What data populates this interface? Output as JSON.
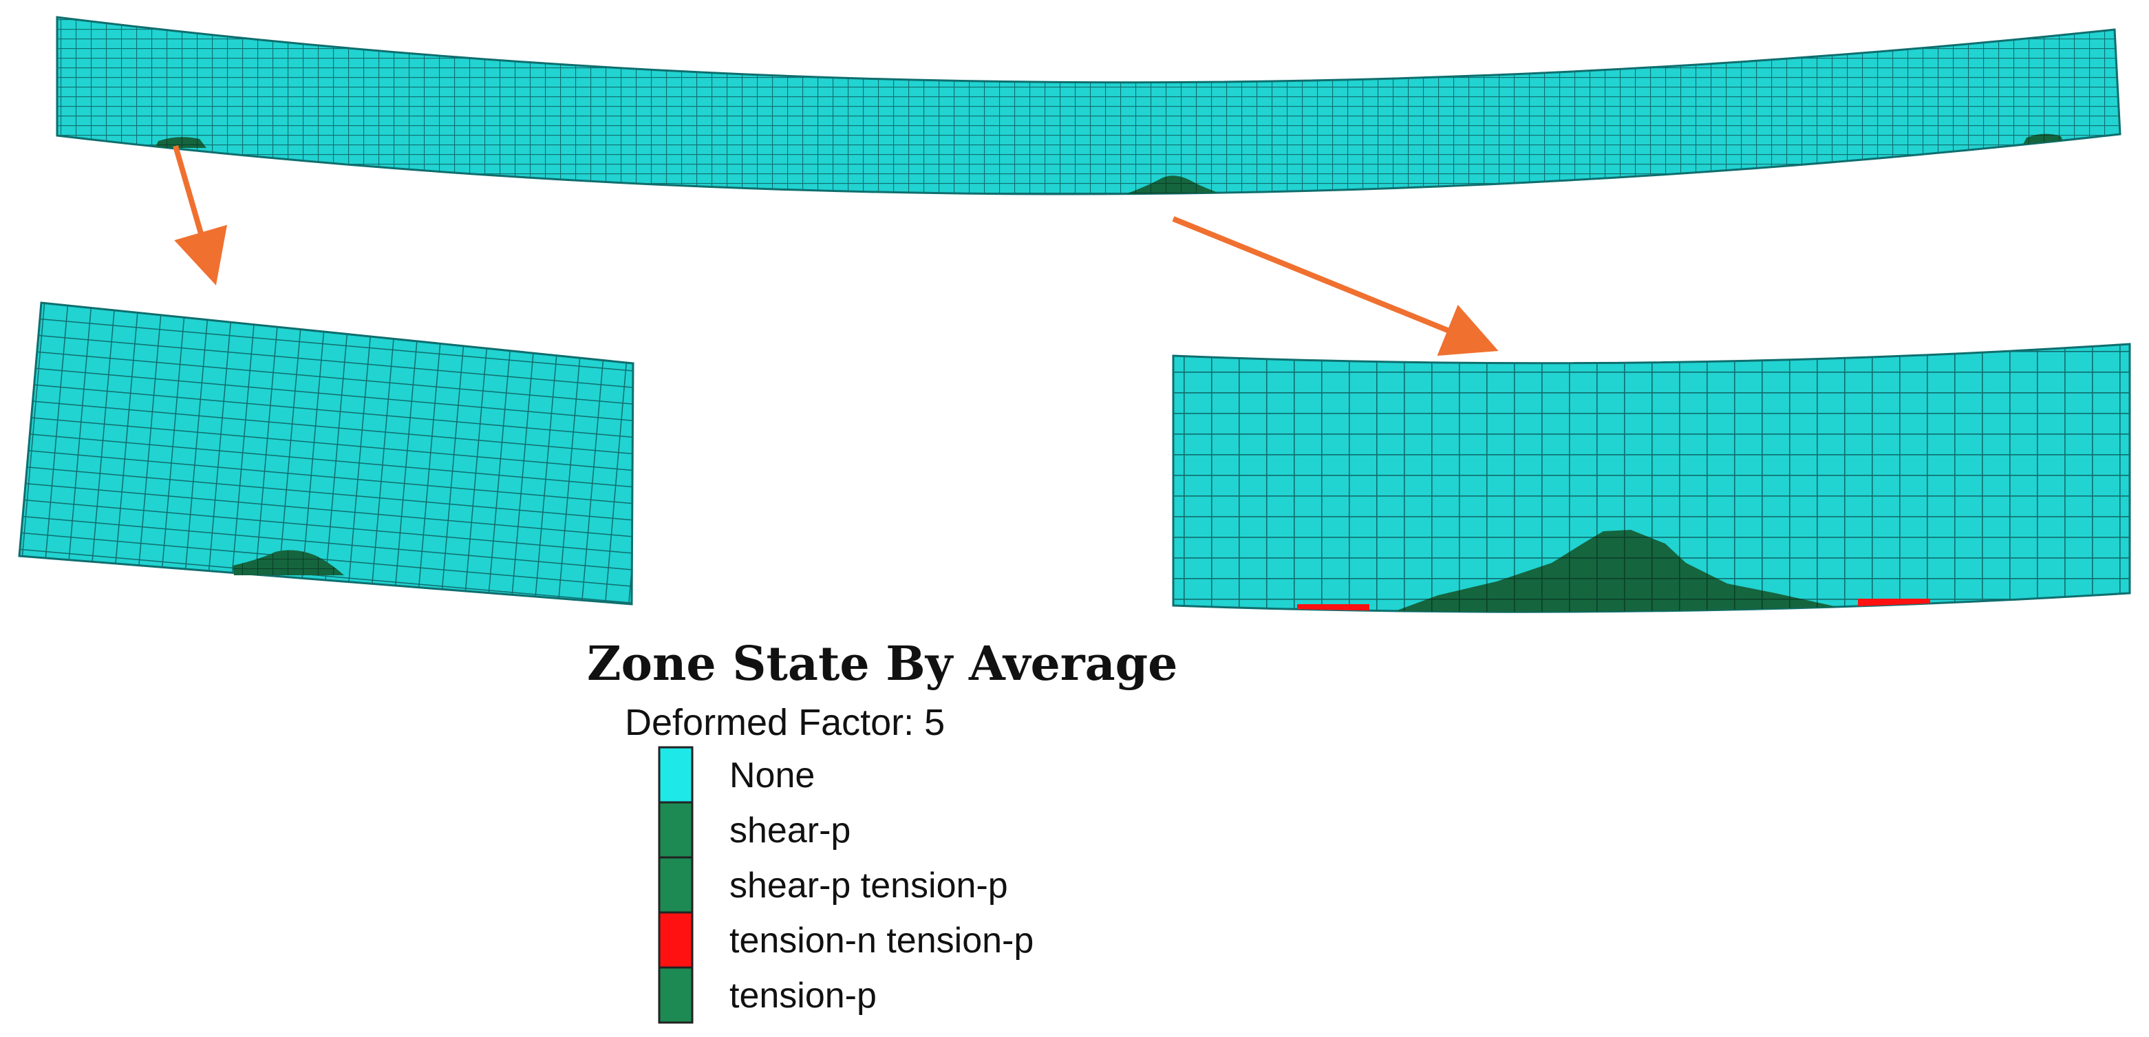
{
  "legend": {
    "title": "Zone State By Average",
    "subtitle": "Deformed Factor: 5",
    "items": [
      {
        "label": "None",
        "color": "#1fe8e8"
      },
      {
        "label": "shear-p",
        "color": "#1c8a52"
      },
      {
        "label": "shear-p tension-p",
        "color": "#1c8a52"
      },
      {
        "label": "tension-n tension-p",
        "color": "#ff1111"
      },
      {
        "label": "tension-p",
        "color": "#1c8a52"
      }
    ]
  },
  "colors": {
    "mesh_fill": "#21d3d1",
    "mesh_line": "#0f6e6e",
    "plastic_zone": "#15653f",
    "tension_zone": "#ff1111",
    "arrow": "#f07030",
    "background": "#ffffff"
  }
}
